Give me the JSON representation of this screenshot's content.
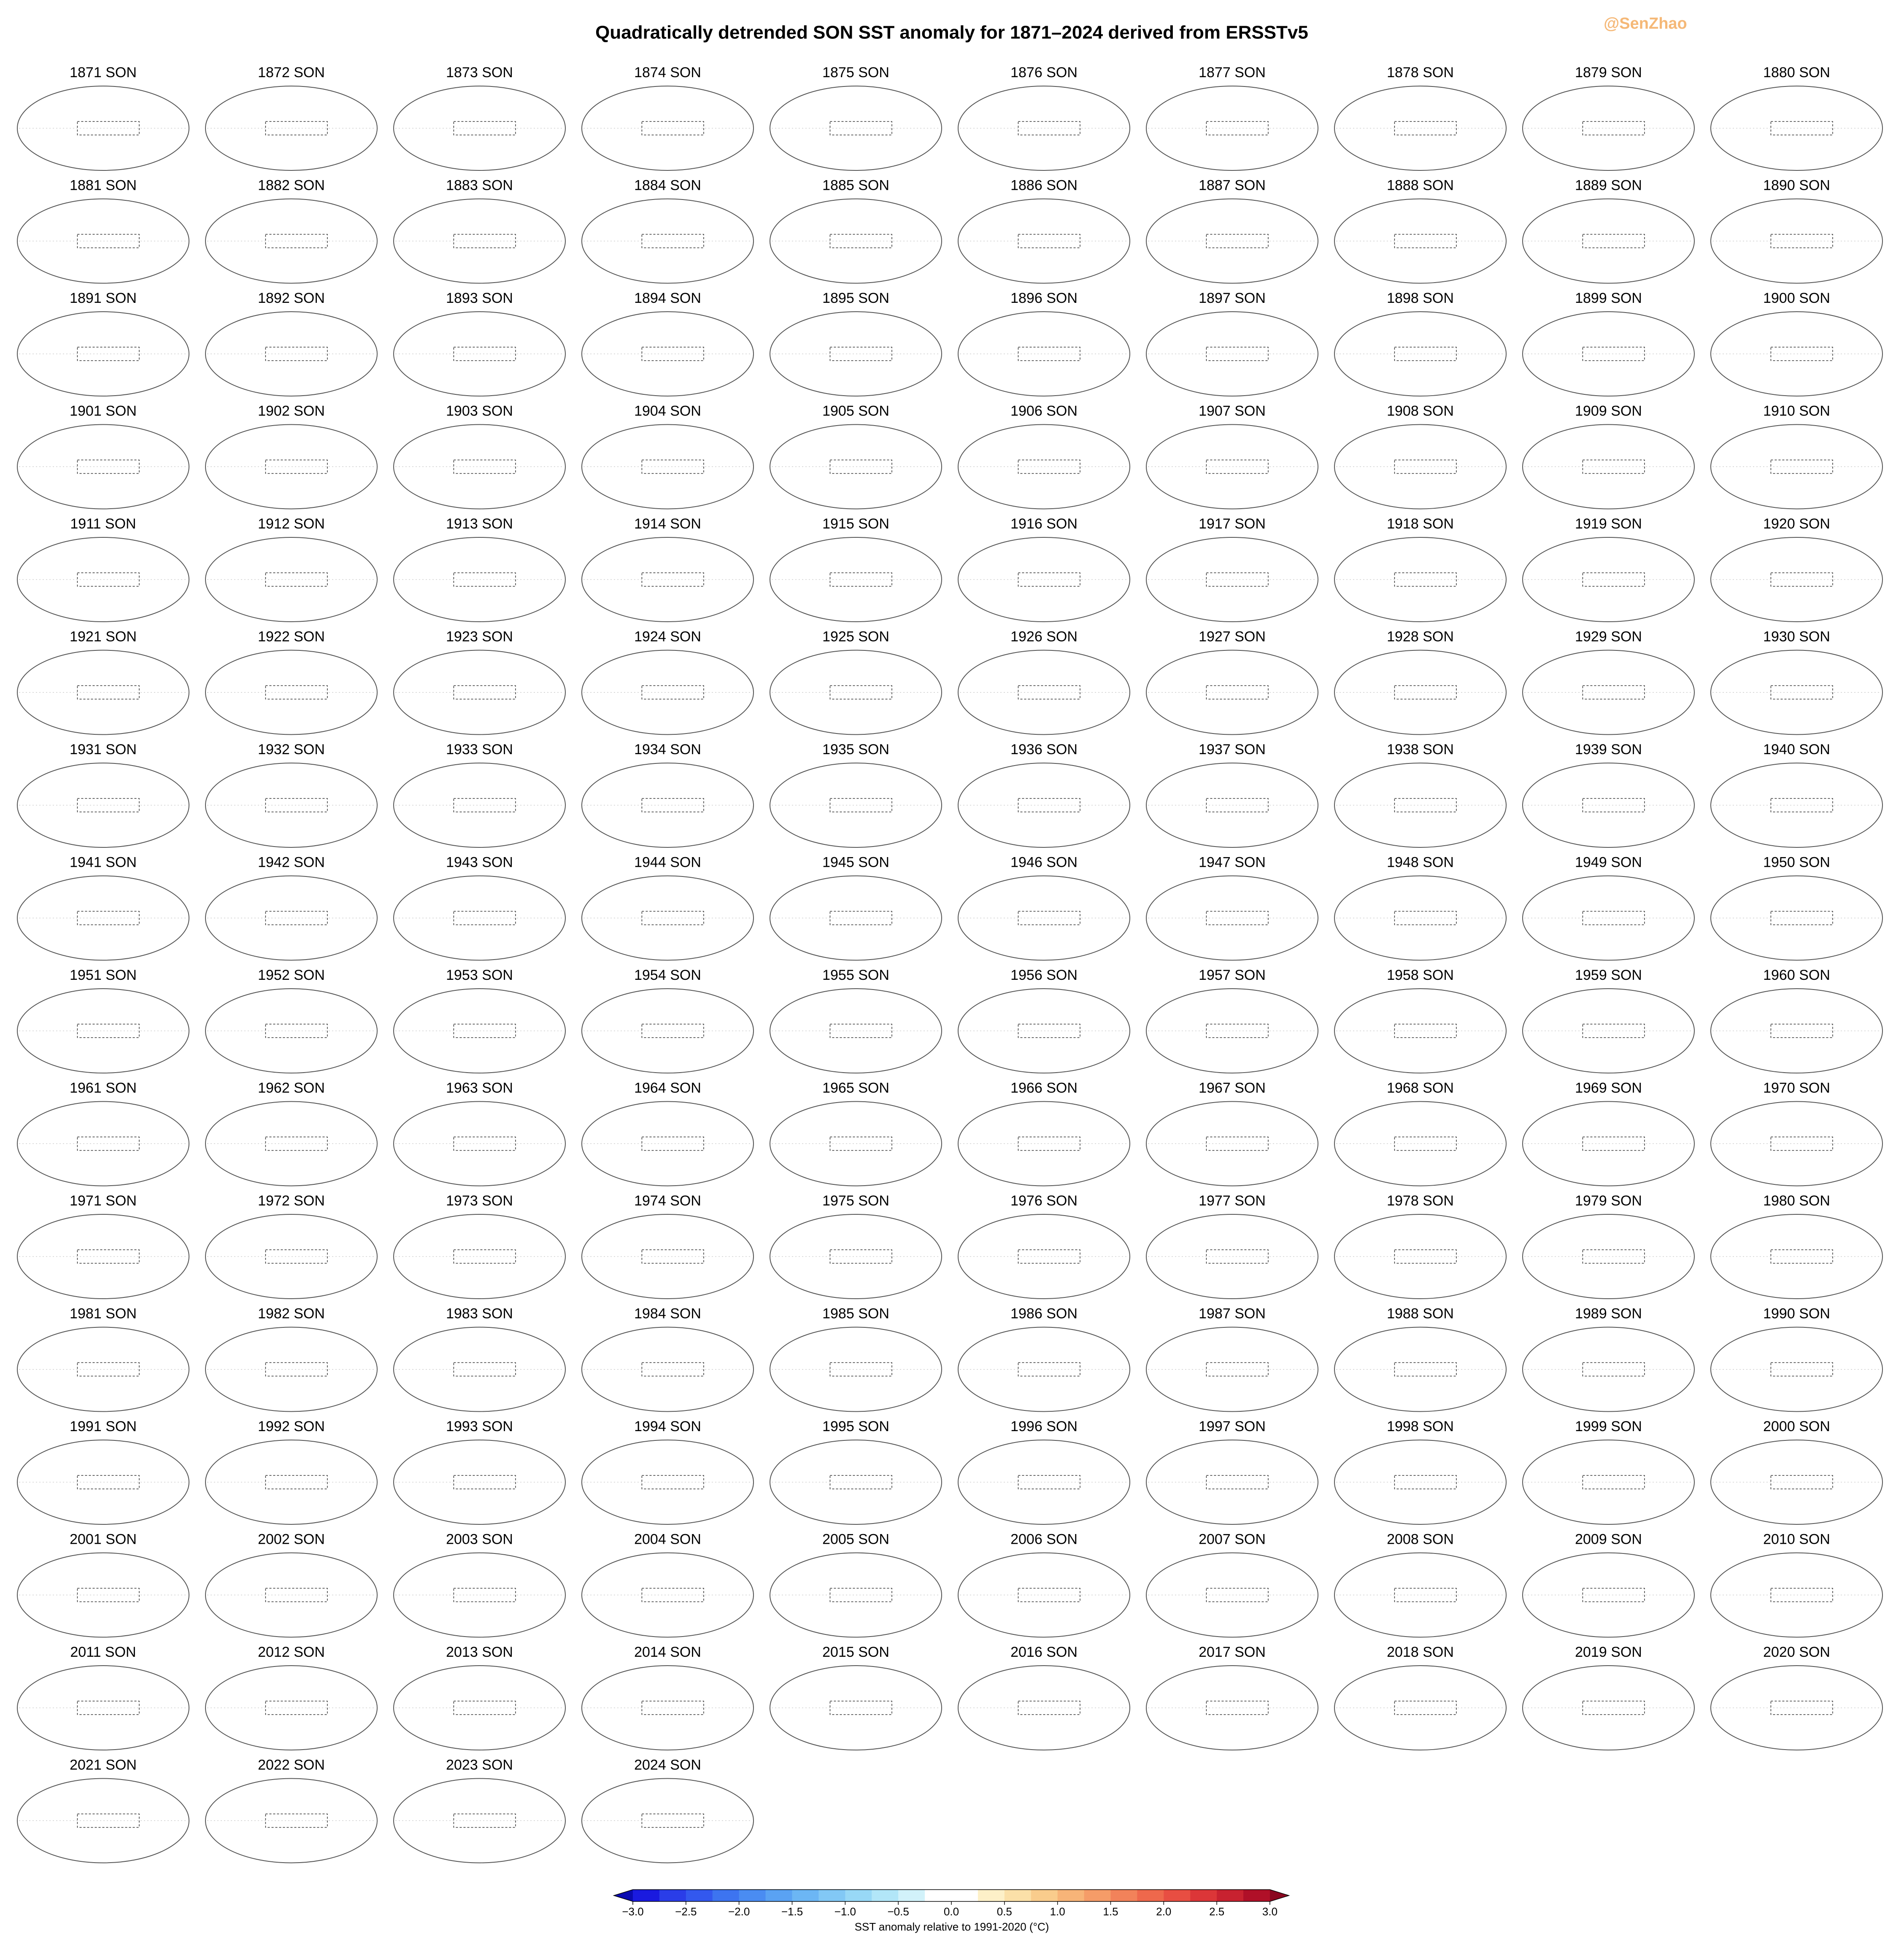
{
  "title": "Quadratically detrended SON SST anomaly for 1871–2024 derived from ERSSTv5",
  "watermark": "@SenZhao",
  "panels": [
    "1871 SON",
    "1872 SON",
    "1873 SON",
    "1874 SON",
    "1875 SON",
    "1876 SON",
    "1877 SON",
    "1878 SON",
    "1879 SON",
    "1880 SON",
    "1881 SON",
    "1882 SON",
    "1883 SON",
    "1884 SON",
    "1885 SON",
    "1886 SON",
    "1887 SON",
    "1888 SON",
    "1889 SON",
    "1890 SON",
    "1891 SON",
    "1892 SON",
    "1893 SON",
    "1894 SON",
    "1895 SON",
    "1896 SON",
    "1897 SON",
    "1898 SON",
    "1899 SON",
    "1900 SON",
    "1901 SON",
    "1902 SON",
    "1903 SON",
    "1904 SON",
    "1905 SON",
    "1906 SON",
    "1907 SON",
    "1908 SON",
    "1909 SON",
    "1910 SON",
    "1911 SON",
    "1912 SON",
    "1913 SON",
    "1914 SON",
    "1915 SON",
    "1916 SON",
    "1917 SON",
    "1918 SON",
    "1919 SON",
    "1920 SON",
    "1921 SON",
    "1922 SON",
    "1923 SON",
    "1924 SON",
    "1925 SON",
    "1926 SON",
    "1927 SON",
    "1928 SON",
    "1929 SON",
    "1930 SON",
    "1931 SON",
    "1932 SON",
    "1933 SON",
    "1934 SON",
    "1935 SON",
    "1936 SON",
    "1937 SON",
    "1938 SON",
    "1939 SON",
    "1940 SON",
    "1941 SON",
    "1942 SON",
    "1943 SON",
    "1944 SON",
    "1945 SON",
    "1946 SON",
    "1947 SON",
    "1948 SON",
    "1949 SON",
    "1950 SON",
    "1951 SON",
    "1952 SON",
    "1953 SON",
    "1954 SON",
    "1955 SON",
    "1956 SON",
    "1957 SON",
    "1958 SON",
    "1959 SON",
    "1960 SON",
    "1961 SON",
    "1962 SON",
    "1963 SON",
    "1964 SON",
    "1965 SON",
    "1966 SON",
    "1967 SON",
    "1968 SON",
    "1969 SON",
    "1970 SON",
    "1971 SON",
    "1972 SON",
    "1973 SON",
    "1974 SON",
    "1975 SON",
    "1976 SON",
    "1977 SON",
    "1978 SON",
    "1979 SON",
    "1980 SON",
    "1981 SON",
    "1982 SON",
    "1983 SON",
    "1984 SON",
    "1985 SON",
    "1986 SON",
    "1987 SON",
    "1988 SON",
    "1989 SON",
    "1990 SON",
    "1991 SON",
    "1992 SON",
    "1993 SON",
    "1994 SON",
    "1995 SON",
    "1996 SON",
    "1997 SON",
    "1998 SON",
    "1999 SON",
    "2000 SON",
    "2001 SON",
    "2002 SON",
    "2003 SON",
    "2004 SON",
    "2005 SON",
    "2006 SON",
    "2007 SON",
    "2008 SON",
    "2009 SON",
    "2010 SON",
    "2011 SON",
    "2012 SON",
    "2013 SON",
    "2014 SON",
    "2015 SON",
    "2016 SON",
    "2017 SON",
    "2018 SON",
    "2019 SON",
    "2020 SON",
    "2021 SON",
    "2022 SON",
    "2023 SON",
    "2024 SON"
  ],
  "colorbar": {
    "label": "SST anomaly relative to 1991-2020 (°C)",
    "clim": [
      -3,
      3
    ],
    "ticks": [
      {
        "value": -3,
        "label": "−3.0"
      },
      {
        "value": -2.5,
        "label": "−2.5"
      },
      {
        "value": -2,
        "label": "−2.0"
      },
      {
        "value": -1.5,
        "label": "−1.5"
      },
      {
        "value": -1,
        "label": "−1.0"
      },
      {
        "value": -0.5,
        "label": "−0.5"
      },
      {
        "value": 0,
        "label": "0.0"
      },
      0.5,
      {
        "value": 1,
        "label": "1.0"
      },
      1.5,
      {
        "value": 2,
        "label": "2.0"
      },
      2.5,
      {
        "value": 3,
        "label": "3.0"
      }
    ],
    "colors": [
      "#1a1adf",
      "#2a3de8",
      "#3358ee",
      "#3d74f0",
      "#4a8cf2",
      "#5aa2f3",
      "#6cb6f4",
      "#82c8f5",
      "#98d8f6",
      "#b2e6f8",
      "#d2f2fa",
      "#ffffff",
      "#ffffff",
      "#fdf0c8",
      "#fbe0a8",
      "#f9cc8c",
      "#f7b478",
      "#f59c68",
      "#f2825a",
      "#ee684c",
      "#e84e42",
      "#dc3638",
      "#c82230",
      "#b01028"
    ],
    "under": "#0a0ab0",
    "over": "#8a0820"
  }
}
